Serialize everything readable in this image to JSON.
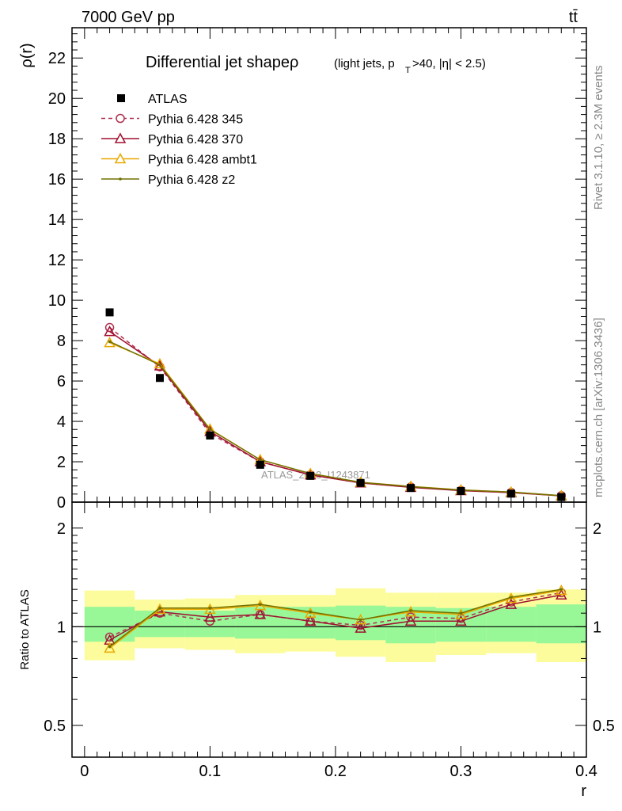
{
  "header": {
    "energy_label": "7000 GeV pp",
    "process_label": "tt̄",
    "side_label_top": "Rivet 3.1.10, ≥ 2.3M events",
    "side_label_bottom": "mcplots.cern.ch [arXiv:1306.3436]",
    "watermark": "ATLAS_2013_I1243871"
  },
  "chart_data": [
    {
      "type": "line",
      "title_main": "Differential jet shapeρ",
      "title_sub_pre": "(light jets, p",
      "title_sub_sub": "T",
      "title_sub_post": ">40, |η| < 2.5)",
      "ylabel": "ρ(r)",
      "xlim": [
        -0.01,
        0.4
      ],
      "ylim": [
        0,
        23.5
      ],
      "y_ticks": [
        0,
        2,
        4,
        6,
        8,
        10,
        12,
        14,
        16,
        18,
        20,
        22
      ],
      "x": [
        0.02,
        0.06,
        0.1,
        0.14,
        0.18,
        0.22,
        0.26,
        0.3,
        0.34,
        0.38
      ],
      "reference": {
        "name": "ATLAS",
        "values": [
          9.4,
          6.15,
          3.3,
          1.85,
          1.3,
          0.95,
          0.7,
          0.55,
          0.42,
          0.25
        ]
      },
      "series": [
        {
          "name": "Pythia 6.428 345",
          "style": "dashed",
          "marker": "circle",
          "color": "#b03050",
          "values": [
            8.65,
            6.7,
            3.4,
            2.0,
            1.35,
            0.95,
            0.75,
            0.58,
            0.48,
            0.32
          ]
        },
        {
          "name": "Pythia 6.428 370",
          "style": "solid",
          "marker": "triangle",
          "color": "#a01030",
          "values": [
            8.45,
            6.75,
            3.5,
            2.0,
            1.35,
            0.95,
            0.73,
            0.57,
            0.47,
            0.31
          ]
        },
        {
          "name": "Pythia 6.428 ambt1",
          "style": "solid",
          "marker": "triangle",
          "color": "#e8a800",
          "values": [
            7.9,
            6.85,
            3.62,
            2.1,
            1.42,
            0.98,
            0.78,
            0.61,
            0.5,
            0.32
          ]
        },
        {
          "name": "Pythia 6.428 z2",
          "style": "solid",
          "marker": "dot",
          "color": "#707000",
          "values": [
            7.95,
            6.8,
            3.6,
            2.1,
            1.42,
            0.98,
            0.77,
            0.6,
            0.5,
            0.32
          ]
        }
      ],
      "legend_position": "top-left"
    },
    {
      "type": "line",
      "ylabel": "Ratio to ATLAS",
      "xlabel": "r",
      "xlim": [
        -0.01,
        0.4
      ],
      "ylim": [
        0.4,
        2.4
      ],
      "y_ticks": [
        0.5,
        1,
        2
      ],
      "y_tick_labels": [
        "0.5",
        "1",
        "2"
      ],
      "x_ticks": [
        0,
        0.1,
        0.2,
        0.3,
        0.4
      ],
      "x_tick_labels": [
        "0",
        "0.1",
        "0.2",
        "0.3",
        "0.4"
      ],
      "scale": "log",
      "bands": {
        "edges": [
          0.0,
          0.04,
          0.08,
          0.12,
          0.16,
          0.2,
          0.24,
          0.28,
          0.32,
          0.36,
          0.4
        ],
        "inner_lo": [
          0.9,
          0.93,
          0.93,
          0.92,
          0.92,
          0.91,
          0.89,
          0.9,
          0.9,
          0.89
        ],
        "inner_hi": [
          1.15,
          1.12,
          1.12,
          1.15,
          1.15,
          1.16,
          1.15,
          1.14,
          1.15,
          1.17
        ],
        "outer_lo": [
          0.79,
          0.86,
          0.85,
          0.83,
          0.84,
          0.81,
          0.78,
          0.82,
          0.83,
          0.78
        ],
        "outer_hi": [
          1.29,
          1.21,
          1.22,
          1.25,
          1.25,
          1.31,
          1.27,
          1.27,
          1.27,
          1.3
        ],
        "inner_color": "#98f898",
        "outer_color": "#fcfc9c"
      },
      "series": [
        {
          "name": "Pythia 6.428 345",
          "values": [
            0.93,
            1.1,
            1.04,
            1.09,
            1.04,
            1.01,
            1.07,
            1.06,
            1.19,
            1.27
          ]
        },
        {
          "name": "Pythia 6.428 370",
          "values": [
            0.91,
            1.11,
            1.07,
            1.09,
            1.04,
            0.99,
            1.04,
            1.04,
            1.17,
            1.25
          ]
        },
        {
          "name": "Pythia 6.428 ambt1",
          "values": [
            0.86,
            1.13,
            1.13,
            1.16,
            1.1,
            1.05,
            1.11,
            1.09,
            1.22,
            1.29
          ]
        },
        {
          "name": "Pythia 6.428 z2",
          "values": [
            0.87,
            1.14,
            1.14,
            1.17,
            1.11,
            1.05,
            1.12,
            1.1,
            1.23,
            1.3
          ]
        }
      ]
    }
  ]
}
